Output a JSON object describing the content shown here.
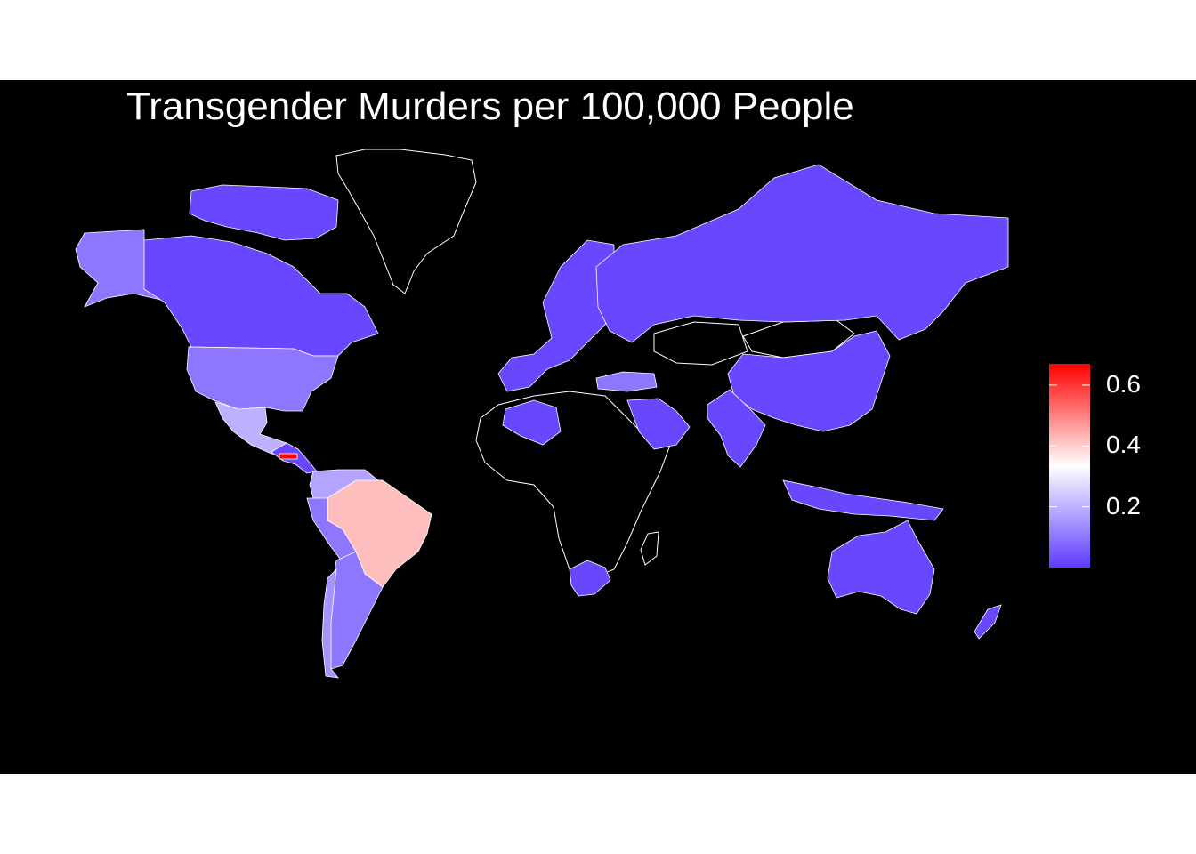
{
  "title": "Transgender Murders per 100,000 People",
  "colors": {
    "background": "#000000",
    "border": "#ffffff",
    "no_data": "#000000",
    "scale_low": "#5f3bff",
    "scale_mid": "#ffffff",
    "scale_high": "#ff0000"
  },
  "legend": {
    "min": 0.0,
    "max": 0.67,
    "mid": 0.33,
    "ticks": [
      {
        "value": 0.2,
        "label": "0.2"
      },
      {
        "value": 0.4,
        "label": "0.4"
      },
      {
        "value": 0.6,
        "label": "0.6"
      }
    ]
  },
  "chart_data": {
    "type": "choropleth",
    "title": "Transgender Murders per 100,000 People",
    "legend_placement": "right",
    "scale": {
      "min": 0.0,
      "max": 0.67,
      "colors": [
        "#5f3bff",
        "#ffffff",
        "#ff0000"
      ]
    },
    "regions": [
      {
        "id": "alaska",
        "value": 0.1
      },
      {
        "id": "canada",
        "value": 0.02
      },
      {
        "id": "usa",
        "value": 0.1
      },
      {
        "id": "mexico",
        "value": 0.2
      },
      {
        "id": "central-america",
        "value": 0.02
      },
      {
        "id": "honduras",
        "value": 0.67
      },
      {
        "id": "colombia-venezuela",
        "value": 0.18
      },
      {
        "id": "brazil",
        "value": 0.42
      },
      {
        "id": "andes",
        "value": 0.1
      },
      {
        "id": "argentina",
        "value": 0.1
      },
      {
        "id": "chile",
        "value": 0.15
      },
      {
        "id": "europe",
        "value": 0.02
      },
      {
        "id": "turkey",
        "value": 0.1
      },
      {
        "id": "russia",
        "value": 0.02
      },
      {
        "id": "china",
        "value": 0.02
      },
      {
        "id": "india",
        "value": 0.02
      },
      {
        "id": "arabia",
        "value": 0.02
      },
      {
        "id": "algeria",
        "value": 0.02
      },
      {
        "id": "south-africa",
        "value": 0.02
      },
      {
        "id": "southeast-asia",
        "value": 0.02
      },
      {
        "id": "australia",
        "value": 0.02
      },
      {
        "id": "new-zealand",
        "value": 0.02
      },
      {
        "id": "arctic-islands",
        "value": 0.02
      }
    ]
  }
}
